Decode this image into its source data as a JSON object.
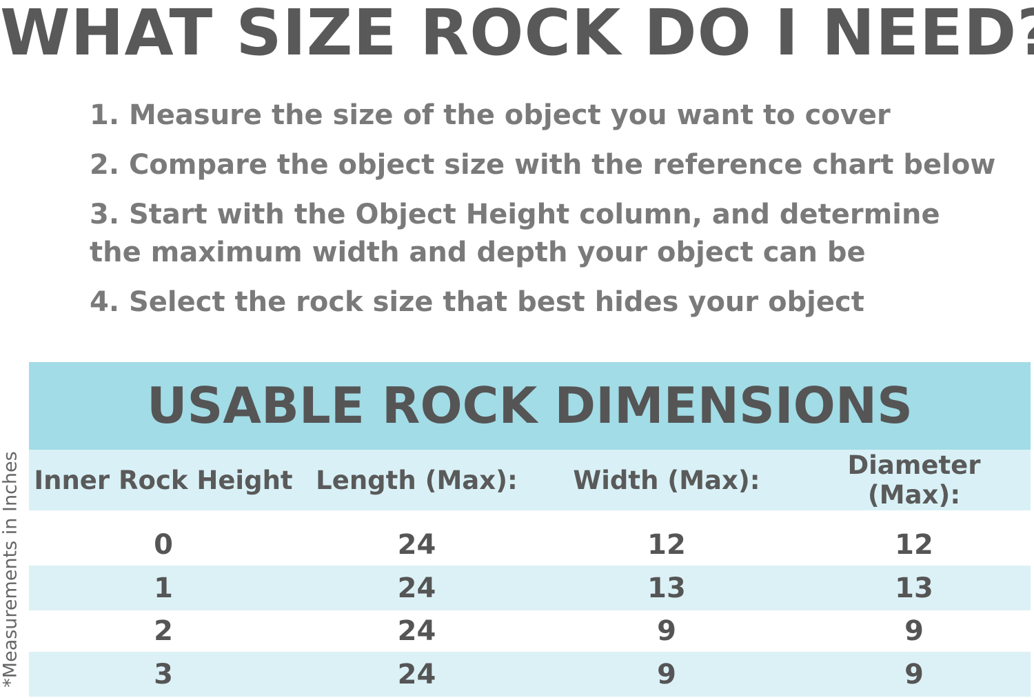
{
  "title": "WHAT SIZE ROCK DO I NEED?",
  "steps": [
    "1. Measure the size of the object you want to cover",
    "2. Compare the object size with the reference chart below",
    "3. Start with the Object Height column, and determine the maximum width and depth your object can be",
    "4. Select the rock size that best hides your object"
  ],
  "table": {
    "title": "USABLE ROCK DIMENSIONS",
    "headers": [
      "Inner Rock Height",
      "Length (Max):",
      "Width (Max):",
      "Diameter (Max):"
    ],
    "rows": [
      [
        "0",
        "24",
        "12",
        "12"
      ],
      [
        "1",
        "24",
        "13",
        "13"
      ],
      [
        "2",
        "24",
        "9",
        "9"
      ],
      [
        "3",
        "24",
        "9",
        "9"
      ]
    ]
  },
  "side_note": "*Measurements in Inches",
  "colors": {
    "band": "#a2dce6",
    "stripe": "#dcf1f6",
    "text": "#555555"
  }
}
